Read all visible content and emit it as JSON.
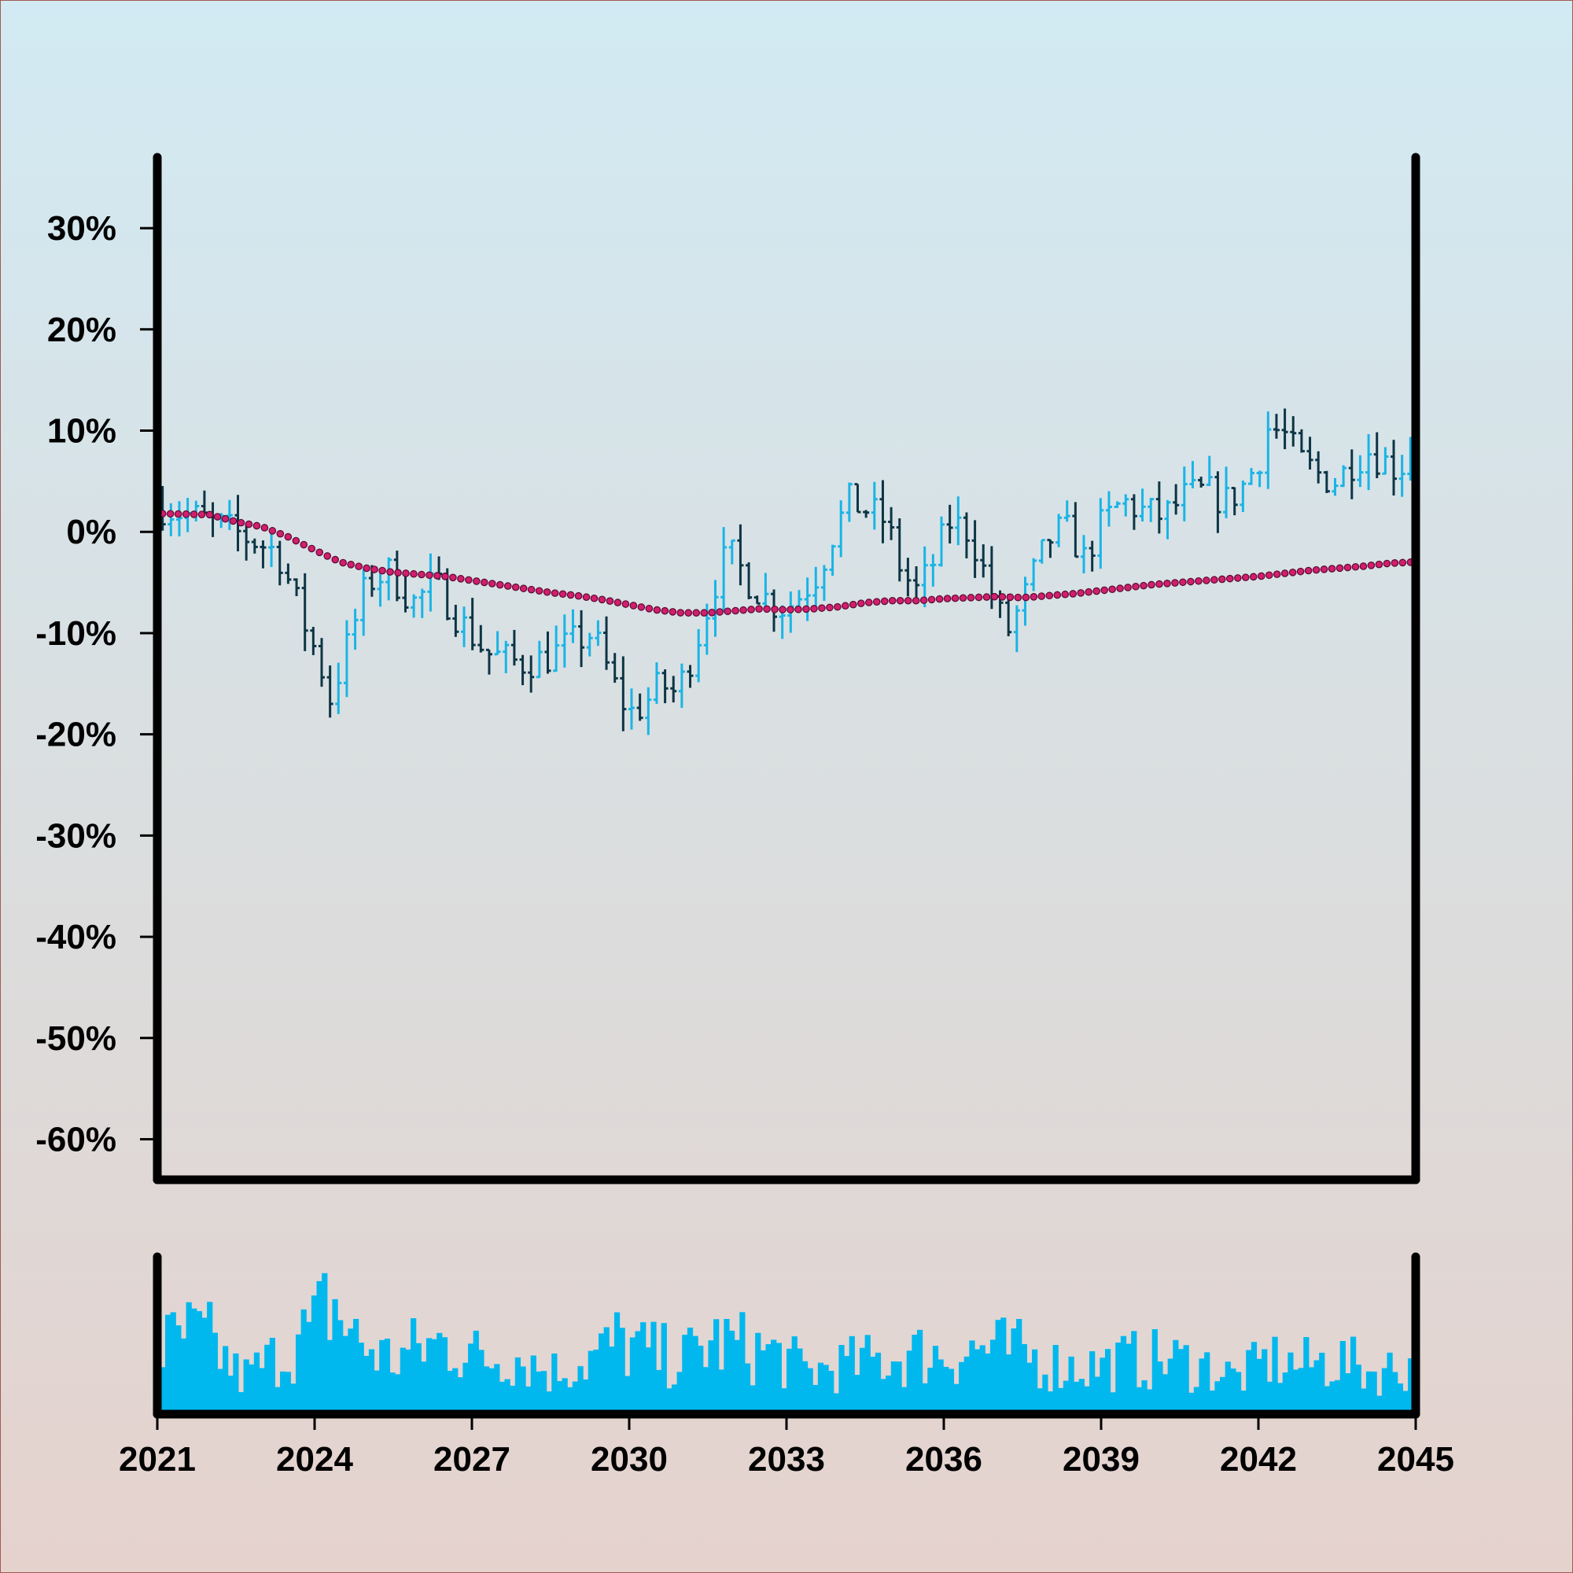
{
  "chart_data": [
    {
      "type": "ohlc",
      "panel": "price",
      "y_unit": "%",
      "ylim": [
        -64,
        37
      ],
      "xlim": [
        2021,
        2045
      ],
      "grid": false,
      "legend": "none",
      "y_ticks": [
        {
          "value": 30,
          "label": "30%"
        },
        {
          "value": 20,
          "label": "20%"
        },
        {
          "value": 10,
          "label": "10%"
        },
        {
          "value": 0,
          "label": "0%"
        },
        {
          "value": -10,
          "label": "-10%"
        },
        {
          "value": -20,
          "label": "-20%"
        },
        {
          "value": -30,
          "label": "-30%"
        },
        {
          "value": -40,
          "label": "-40%"
        },
        {
          "value": -50,
          "label": "-50%"
        },
        {
          "value": -60,
          "label": "-60%"
        }
      ],
      "price_path": [
        [
          2021.1,
          2.5
        ],
        [
          2022.0,
          1.0
        ],
        [
          2022.9,
          -1.0
        ],
        [
          2023.3,
          -2.0
        ],
        [
          2023.8,
          -9.0
        ],
        [
          2024.1,
          -13.0
        ],
        [
          2024.3,
          -16.5
        ],
        [
          2024.7,
          -10.0
        ],
        [
          2025.0,
          -5.0
        ],
        [
          2025.4,
          -4.0
        ],
        [
          2025.9,
          -7.0
        ],
        [
          2026.3,
          -5.0
        ],
        [
          2026.8,
          -9.0
        ],
        [
          2027.3,
          -12.0
        ],
        [
          2027.9,
          -13.0
        ],
        [
          2028.4,
          -12.5
        ],
        [
          2028.9,
          -11.0
        ],
        [
          2029.3,
          -10.0
        ],
        [
          2029.7,
          -15.0
        ],
        [
          2030.0,
          -18.0
        ],
        [
          2030.3,
          -17.0
        ],
        [
          2030.6,
          -15.0
        ],
        [
          2030.9,
          -16.0
        ],
        [
          2031.1,
          -13.5
        ],
        [
          2031.4,
          -9.0
        ],
        [
          2031.7,
          -4.0
        ],
        [
          2031.9,
          -2.0
        ],
        [
          2032.3,
          -5.0
        ],
        [
          2032.7,
          -7.0
        ],
        [
          2033.0,
          -7.5
        ],
        [
          2033.3,
          -6.0
        ],
        [
          2033.6,
          -4.0
        ],
        [
          2033.9,
          0.0
        ],
        [
          2034.2,
          3.0
        ],
        [
          2034.6,
          2.0
        ],
        [
          2034.9,
          1.0
        ],
        [
          2035.2,
          -4.0
        ],
        [
          2035.5,
          -6.0
        ],
        [
          2035.8,
          -3.0
        ],
        [
          2036.1,
          1.0
        ],
        [
          2036.5,
          0.0
        ],
        [
          2036.7,
          -3.0
        ],
        [
          2036.9,
          -6.0
        ],
        [
          2037.2,
          -10.0
        ],
        [
          2037.5,
          -7.0
        ],
        [
          2037.8,
          -3.0
        ],
        [
          2038.1,
          0.0
        ],
        [
          2038.4,
          0.0
        ],
        [
          2038.7,
          -3.0
        ],
        [
          2038.9,
          0.0
        ],
        [
          2039.4,
          3.0
        ],
        [
          2039.8,
          2.0
        ],
        [
          2040.2,
          1.5
        ],
        [
          2040.6,
          3.5
        ],
        [
          2041.0,
          4.0
        ],
        [
          2041.4,
          3.0
        ],
        [
          2041.7,
          4.5
        ],
        [
          2042.0,
          7.0
        ],
        [
          2042.2,
          10.5
        ],
        [
          2042.5,
          9.5
        ],
        [
          2042.8,
          7.0
        ],
        [
          2043.2,
          5.5
        ],
        [
          2043.5,
          5.0
        ],
        [
          2043.8,
          7.0
        ],
        [
          2044.1,
          8.0
        ],
        [
          2044.4,
          7.0
        ],
        [
          2044.7,
          6.0
        ],
        [
          2044.9,
          9.0
        ]
      ],
      "moving_average": [
        [
          2021.1,
          1.8
        ],
        [
          2022.0,
          1.7
        ],
        [
          2022.5,
          1.0
        ],
        [
          2023.0,
          0.5
        ],
        [
          2023.5,
          -0.5
        ],
        [
          2024.0,
          -1.8
        ],
        [
          2024.5,
          -3.0
        ],
        [
          2025.0,
          -3.6
        ],
        [
          2025.5,
          -4.0
        ],
        [
          2026.0,
          -4.2
        ],
        [
          2026.5,
          -4.4
        ],
        [
          2027.0,
          -4.8
        ],
        [
          2027.5,
          -5.2
        ],
        [
          2028.0,
          -5.6
        ],
        [
          2028.5,
          -6.0
        ],
        [
          2029.0,
          -6.3
        ],
        [
          2029.5,
          -6.7
        ],
        [
          2030.0,
          -7.2
        ],
        [
          2030.5,
          -7.7
        ],
        [
          2031.0,
          -8.0
        ],
        [
          2031.5,
          -8.0
        ],
        [
          2032.0,
          -7.8
        ],
        [
          2032.5,
          -7.6
        ],
        [
          2033.0,
          -7.7
        ],
        [
          2033.5,
          -7.6
        ],
        [
          2034.0,
          -7.4
        ],
        [
          2034.5,
          -7.0
        ],
        [
          2035.0,
          -6.8
        ],
        [
          2035.5,
          -6.8
        ],
        [
          2036.0,
          -6.6
        ],
        [
          2036.5,
          -6.5
        ],
        [
          2037.0,
          -6.4
        ],
        [
          2037.5,
          -6.5
        ],
        [
          2038.0,
          -6.3
        ],
        [
          2038.5,
          -6.1
        ],
        [
          2039.0,
          -5.8
        ],
        [
          2039.5,
          -5.5
        ],
        [
          2040.0,
          -5.2
        ],
        [
          2040.5,
          -5.0
        ],
        [
          2041.0,
          -4.8
        ],
        [
          2041.5,
          -4.6
        ],
        [
          2042.0,
          -4.4
        ],
        [
          2042.5,
          -4.1
        ],
        [
          2043.0,
          -3.8
        ],
        [
          2043.5,
          -3.6
        ],
        [
          2044.0,
          -3.4
        ],
        [
          2044.5,
          -3.1
        ],
        [
          2044.9,
          -3.0
        ]
      ],
      "bar_count": 150,
      "colors": {
        "up": "#1ab4e6",
        "down": "#0d3545",
        "moving_average": "#d21e6e"
      }
    },
    {
      "type": "bar",
      "panel": "volume",
      "xlim": [
        2021,
        2045
      ],
      "x_ticks": [
        {
          "value": 2021,
          "label": "2021"
        },
        {
          "value": 2024,
          "label": "2024"
        },
        {
          "value": 2027,
          "label": "2027"
        },
        {
          "value": 2030,
          "label": "2030"
        },
        {
          "value": 2033,
          "label": "2033"
        },
        {
          "value": 2036,
          "label": "2036"
        },
        {
          "value": 2039,
          "label": "2039"
        },
        {
          "value": 2042,
          "label": "2042"
        },
        {
          "value": 2045,
          "label": "2045"
        }
      ],
      "bar_count": 240,
      "relative_volume_envelope": [
        [
          2021.1,
          0.55
        ],
        [
          2021.6,
          0.65
        ],
        [
          2022.0,
          0.6
        ],
        [
          2022.6,
          0.3
        ],
        [
          2023.0,
          0.4
        ],
        [
          2023.5,
          0.55
        ],
        [
          2024.0,
          0.7
        ],
        [
          2024.3,
          0.95
        ],
        [
          2024.8,
          0.6
        ],
        [
          2025.5,
          0.45
        ],
        [
          2026.0,
          0.55
        ],
        [
          2026.6,
          0.6
        ],
        [
          2027.2,
          0.45
        ],
        [
          2027.8,
          0.5
        ],
        [
          2028.5,
          0.35
        ],
        [
          2029.2,
          0.45
        ],
        [
          2029.8,
          0.6
        ],
        [
          2030.4,
          0.5
        ],
        [
          2031.0,
          0.45
        ],
        [
          2031.6,
          0.6
        ],
        [
          2032.2,
          0.55
        ],
        [
          2032.8,
          0.5
        ],
        [
          2033.4,
          0.35
        ],
        [
          2034.0,
          0.4
        ],
        [
          2034.8,
          0.45
        ],
        [
          2035.5,
          0.5
        ],
        [
          2036.2,
          0.5
        ],
        [
          2036.8,
          0.55
        ],
        [
          2037.5,
          0.5
        ],
        [
          2038.2,
          0.4
        ],
        [
          2038.9,
          0.4
        ],
        [
          2039.6,
          0.45
        ],
        [
          2040.3,
          0.45
        ],
        [
          2041.0,
          0.4
        ],
        [
          2041.6,
          0.3
        ],
        [
          2042.2,
          0.45
        ],
        [
          2042.8,
          0.4
        ],
        [
          2043.5,
          0.45
        ],
        [
          2044.2,
          0.35
        ],
        [
          2044.9,
          0.4
        ]
      ],
      "color": "#00b8ee"
    }
  ]
}
